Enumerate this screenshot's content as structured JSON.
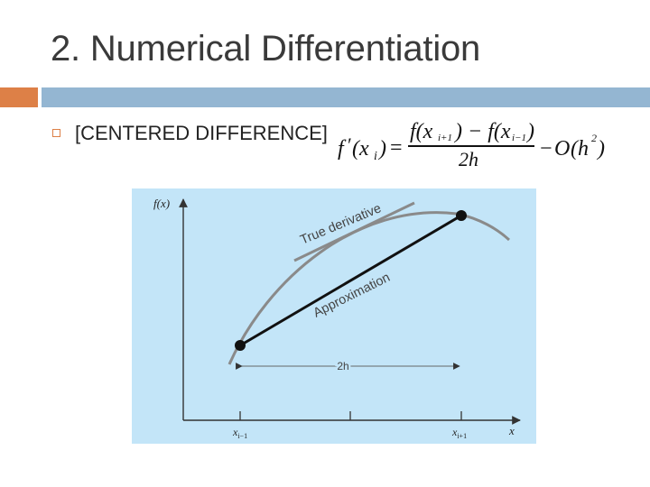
{
  "slide": {
    "title": "2. Numerical Differentiation",
    "bullet_text": "[CENTERED DIFFERENCE]",
    "colors": {
      "accent": "#dd8047",
      "bar": "#94b6d2",
      "figure_bg": "#c3e5f8"
    }
  },
  "formula": {
    "lhs_f": "f",
    "lhs_prime": "′",
    "lhs_arg": "(x",
    "lhs_sub": "i",
    "lhs_close": ")",
    "equals": "=",
    "num_a": "f(x",
    "num_a_sub": "i+1",
    "num_mid": ") − f(x",
    "num_b_sub": "i−1",
    "num_close": ")",
    "denominator": "2h",
    "minus": "−",
    "O": "O",
    "err_open": "(h",
    "err_exp": "2",
    "err_close": ")"
  },
  "figure": {
    "y_axis_label": "f(x)",
    "x_axis_label": "x",
    "tangent_label": "True derivative",
    "secant_label": "Approximation",
    "interval_label": "2h",
    "tick_left": "x",
    "tick_left_sub": "i−1",
    "tick_right": "x",
    "tick_right_sub": "i+1"
  }
}
